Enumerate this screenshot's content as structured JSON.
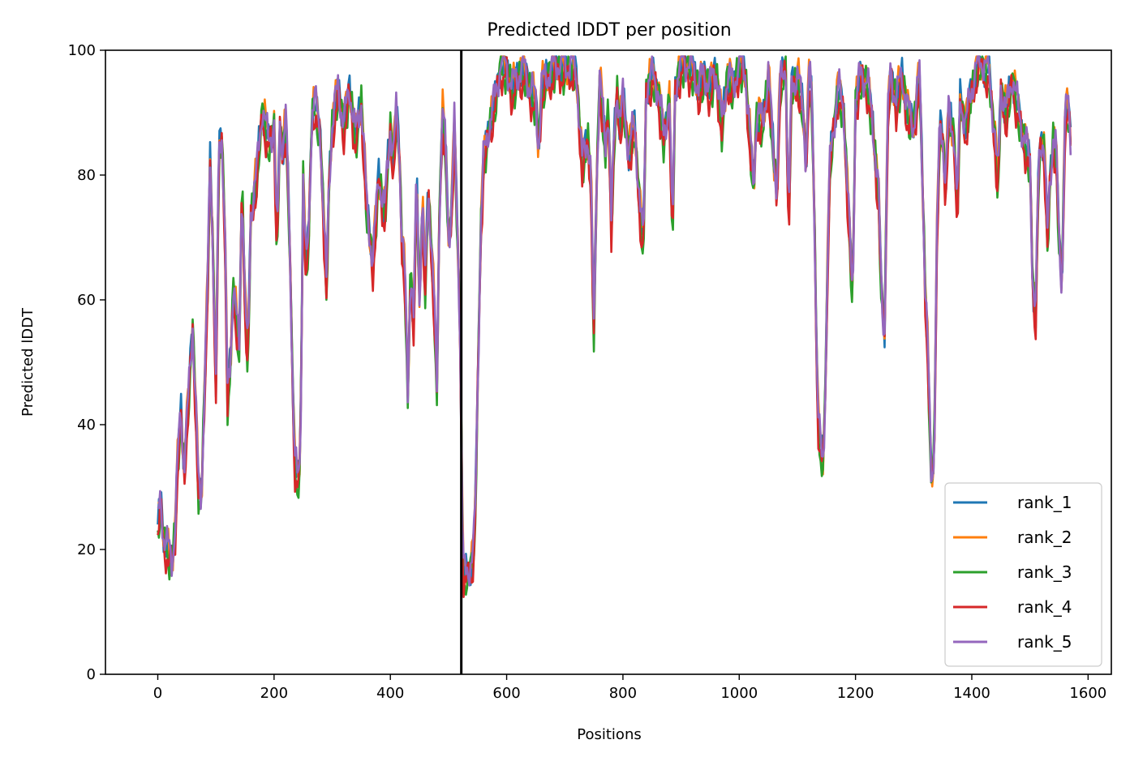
{
  "chart_data": {
    "type": "line",
    "title": "Predicted lDDT per position",
    "xlabel": "Positions",
    "ylabel": "Predicted lDDT",
    "xlim": [
      -90,
      1640
    ],
    "ylim": [
      0,
      100
    ],
    "xticks": [
      0,
      200,
      400,
      600,
      800,
      1000,
      1200,
      1400,
      1600
    ],
    "yticks": [
      0,
      20,
      40,
      60,
      80,
      100
    ],
    "vline_x": 522,
    "grid": false,
    "legend_position": "lower-right",
    "colors": [
      "#1f77b4",
      "#ff7f0e",
      "#2ca02c",
      "#d62728",
      "#9467bd"
    ],
    "series": [
      {
        "name": "rank_1",
        "color": "#1f77b4",
        "offset": 0.0
      },
      {
        "name": "rank_2",
        "color": "#ff7f0e",
        "offset": 0.6
      },
      {
        "name": "rank_3",
        "color": "#2ca02c",
        "offset": -0.9
      },
      {
        "name": "rank_4",
        "color": "#d62728",
        "offset": -1.6
      },
      {
        "name": "rank_5",
        "color": "#9467bd",
        "offset": 0.3
      }
    ],
    "profile": [
      [
        0,
        24
      ],
      [
        5,
        28
      ],
      [
        10,
        22
      ],
      [
        18,
        20
      ],
      [
        25,
        18
      ],
      [
        30,
        24
      ],
      [
        35,
        36
      ],
      [
        40,
        42
      ],
      [
        45,
        33
      ],
      [
        50,
        40
      ],
      [
        55,
        48
      ],
      [
        60,
        56
      ],
      [
        65,
        44
      ],
      [
        70,
        30
      ],
      [
        75,
        28
      ],
      [
        80,
        45
      ],
      [
        85,
        60
      ],
      [
        90,
        82
      ],
      [
        95,
        68
      ],
      [
        100,
        46
      ],
      [
        105,
        84
      ],
      [
        110,
        86
      ],
      [
        115,
        74
      ],
      [
        120,
        44
      ],
      [
        125,
        50
      ],
      [
        130,
        63
      ],
      [
        135,
        57
      ],
      [
        140,
        52
      ],
      [
        145,
        80
      ],
      [
        150,
        60
      ],
      [
        155,
        50
      ],
      [
        160,
        74
      ],
      [
        170,
        80
      ],
      [
        180,
        91
      ],
      [
        190,
        85
      ],
      [
        200,
        88
      ],
      [
        205,
        68
      ],
      [
        210,
        88
      ],
      [
        215,
        84
      ],
      [
        220,
        89
      ],
      [
        225,
        76
      ],
      [
        230,
        56
      ],
      [
        235,
        35
      ],
      [
        240,
        31
      ],
      [
        245,
        34
      ],
      [
        250,
        80
      ],
      [
        255,
        64
      ],
      [
        260,
        72
      ],
      [
        265,
        90
      ],
      [
        270,
        92
      ],
      [
        280,
        86
      ],
      [
        290,
        62
      ],
      [
        295,
        80
      ],
      [
        300,
        88
      ],
      [
        310,
        94
      ],
      [
        320,
        88
      ],
      [
        330,
        94
      ],
      [
        340,
        86
      ],
      [
        350,
        92
      ],
      [
        360,
        74
      ],
      [
        370,
        66
      ],
      [
        380,
        80
      ],
      [
        390,
        74
      ],
      [
        400,
        88
      ],
      [
        405,
        82
      ],
      [
        410,
        90
      ],
      [
        415,
        85
      ],
      [
        420,
        70
      ],
      [
        425,
        64
      ],
      [
        430,
        45
      ],
      [
        435,
        66
      ],
      [
        440,
        56
      ],
      [
        445,
        80
      ],
      [
        450,
        60
      ],
      [
        455,
        76
      ],
      [
        460,
        62
      ],
      [
        465,
        78
      ],
      [
        470,
        70
      ],
      [
        475,
        60
      ],
      [
        480,
        46
      ],
      [
        485,
        78
      ],
      [
        490,
        90
      ],
      [
        495,
        84
      ],
      [
        500,
        70
      ],
      [
        505,
        74
      ],
      [
        510,
        88
      ],
      [
        515,
        72
      ],
      [
        520,
        55
      ],
      [
        525,
        16
      ],
      [
        530,
        16
      ],
      [
        535,
        17
      ],
      [
        540,
        18
      ],
      [
        545,
        22
      ],
      [
        550,
        45
      ],
      [
        555,
        70
      ],
      [
        560,
        82
      ],
      [
        570,
        88
      ],
      [
        580,
        92
      ],
      [
        590,
        98
      ],
      [
        600,
        97
      ],
      [
        610,
        94
      ],
      [
        620,
        96
      ],
      [
        630,
        97
      ],
      [
        640,
        94
      ],
      [
        650,
        92
      ],
      [
        655,
        84
      ],
      [
        660,
        94
      ],
      [
        670,
        96
      ],
      [
        680,
        97
      ],
      [
        690,
        98
      ],
      [
        700,
        97
      ],
      [
        710,
        98
      ],
      [
        720,
        96
      ],
      [
        730,
        82
      ],
      [
        740,
        86
      ],
      [
        745,
        80
      ],
      [
        750,
        54
      ],
      [
        755,
        80
      ],
      [
        760,
        96
      ],
      [
        770,
        84
      ],
      [
        775,
        92
      ],
      [
        780,
        72
      ],
      [
        785,
        86
      ],
      [
        790,
        94
      ],
      [
        795,
        88
      ],
      [
        800,
        92
      ],
      [
        810,
        84
      ],
      [
        820,
        88
      ],
      [
        830,
        74
      ],
      [
        835,
        68
      ],
      [
        840,
        94
      ],
      [
        850,
        96
      ],
      [
        860,
        94
      ],
      [
        870,
        86
      ],
      [
        880,
        92
      ],
      [
        885,
        70
      ],
      [
        890,
        94
      ],
      [
        900,
        98
      ],
      [
        910,
        98
      ],
      [
        920,
        97
      ],
      [
        930,
        94
      ],
      [
        940,
        96
      ],
      [
        950,
        94
      ],
      [
        960,
        97
      ],
      [
        970,
        88
      ],
      [
        980,
        96
      ],
      [
        990,
        94
      ],
      [
        1000,
        98
      ],
      [
        1010,
        97
      ],
      [
        1020,
        84
      ],
      [
        1025,
        78
      ],
      [
        1030,
        90
      ],
      [
        1040,
        88
      ],
      [
        1050,
        96
      ],
      [
        1060,
        82
      ],
      [
        1065,
        78
      ],
      [
        1070,
        94
      ],
      [
        1080,
        98
      ],
      [
        1085,
        72
      ],
      [
        1090,
        94
      ],
      [
        1100,
        96
      ],
      [
        1110,
        90
      ],
      [
        1115,
        82
      ],
      [
        1120,
        96
      ],
      [
        1125,
        92
      ],
      [
        1130,
        70
      ],
      [
        1135,
        42
      ],
      [
        1140,
        36
      ],
      [
        1145,
        34
      ],
      [
        1150,
        56
      ],
      [
        1155,
        80
      ],
      [
        1160,
        86
      ],
      [
        1170,
        94
      ],
      [
        1180,
        90
      ],
      [
        1190,
        70
      ],
      [
        1195,
        60
      ],
      [
        1200,
        92
      ],
      [
        1210,
        96
      ],
      [
        1220,
        95
      ],
      [
        1230,
        88
      ],
      [
        1240,
        76
      ],
      [
        1245,
        60
      ],
      [
        1250,
        55
      ],
      [
        1255,
        88
      ],
      [
        1260,
        96
      ],
      [
        1270,
        92
      ],
      [
        1280,
        96
      ],
      [
        1290,
        90
      ],
      [
        1300,
        88
      ],
      [
        1310,
        96
      ],
      [
        1315,
        80
      ],
      [
        1320,
        62
      ],
      [
        1325,
        50
      ],
      [
        1330,
        32
      ],
      [
        1335,
        34
      ],
      [
        1340,
        70
      ],
      [
        1345,
        88
      ],
      [
        1350,
        86
      ],
      [
        1355,
        78
      ],
      [
        1360,
        90
      ],
      [
        1370,
        86
      ],
      [
        1375,
        74
      ],
      [
        1380,
        92
      ],
      [
        1390,
        88
      ],
      [
        1400,
        94
      ],
      [
        1410,
        98
      ],
      [
        1420,
        98
      ],
      [
        1430,
        96
      ],
      [
        1440,
        86
      ],
      [
        1445,
        78
      ],
      [
        1450,
        94
      ],
      [
        1460,
        90
      ],
      [
        1470,
        96
      ],
      [
        1480,
        90
      ],
      [
        1490,
        86
      ],
      [
        1500,
        82
      ],
      [
        1505,
        62
      ],
      [
        1510,
        58
      ],
      [
        1515,
        82
      ],
      [
        1520,
        86
      ],
      [
        1525,
        84
      ],
      [
        1530,
        70
      ],
      [
        1535,
        80
      ],
      [
        1540,
        86
      ],
      [
        1545,
        84
      ],
      [
        1550,
        70
      ],
      [
        1555,
        62
      ],
      [
        1560,
        88
      ],
      [
        1565,
        92
      ],
      [
        1570,
        86
      ]
    ]
  }
}
